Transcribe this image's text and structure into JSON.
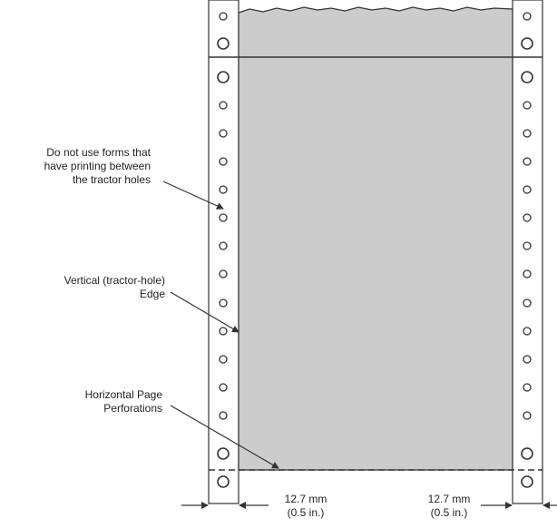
{
  "diagram": {
    "callouts": {
      "tractor_holes": {
        "lines": [
          "Do not use forms that",
          "have printing between",
          "the tractor holes"
        ]
      },
      "vertical_edge": {
        "lines": [
          "Vertical (tractor-hole)",
          "Edge"
        ]
      },
      "horizontal_perf": {
        "lines": [
          "Horizontal Page",
          "Perforations"
        ]
      }
    },
    "margins": {
      "left": {
        "metric": "12.7 mm",
        "imperial": "(0.5 in.)"
      },
      "right": {
        "metric": "12.7 mm",
        "imperial": "(0.5 in.)"
      }
    },
    "colors": {
      "form_gray": "#cccccc",
      "line": "#333333"
    }
  }
}
